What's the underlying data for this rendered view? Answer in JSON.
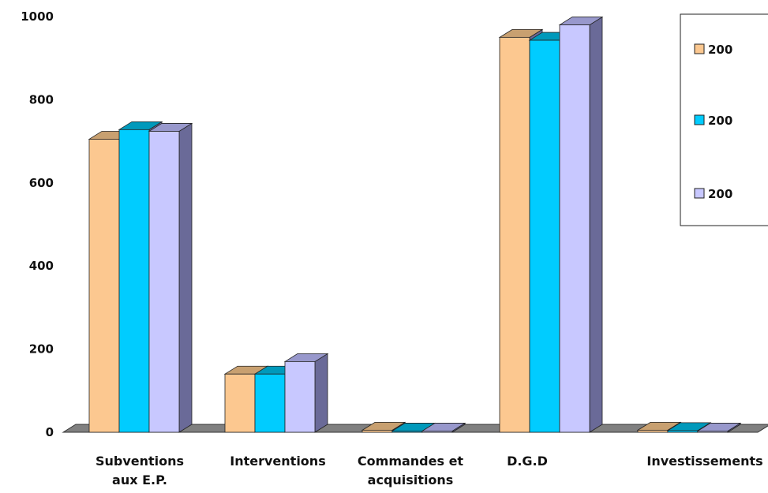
{
  "chart_data": {
    "type": "bar",
    "categories": [
      [
        "Subventions",
        "aux E.P."
      ],
      [
        "Interventions"
      ],
      [
        "Commandes et",
        "acquisitions"
      ],
      [
        "D.G.D"
      ],
      [
        "Investissements"
      ]
    ],
    "series": [
      {
        "name": "200",
        "color": "#fcc890",
        "top_color": "#c8a070",
        "values": [
          705,
          140,
          5,
          950,
          5
        ]
      },
      {
        "name": "200",
        "color": "#00ccff",
        "top_color": "#0099bb",
        "values": [
          728,
          140,
          3,
          943,
          4
        ]
      },
      {
        "name": "200",
        "color": "#c8c8ff",
        "top_color": "#9898cc",
        "values": [
          724,
          170,
          3,
          980,
          3
        ]
      }
    ],
    "y_ticks": [
      "0",
      "200",
      "400",
      "600",
      "800",
      "1000"
    ],
    "ylim": [
      0,
      1000
    ],
    "grid": false,
    "legend_position": "top-right",
    "style": "3d-clustered-column",
    "side_color": "#6a6a98",
    "floor_color": "#808080",
    "title": "",
    "xlabel": "",
    "ylabel": ""
  }
}
